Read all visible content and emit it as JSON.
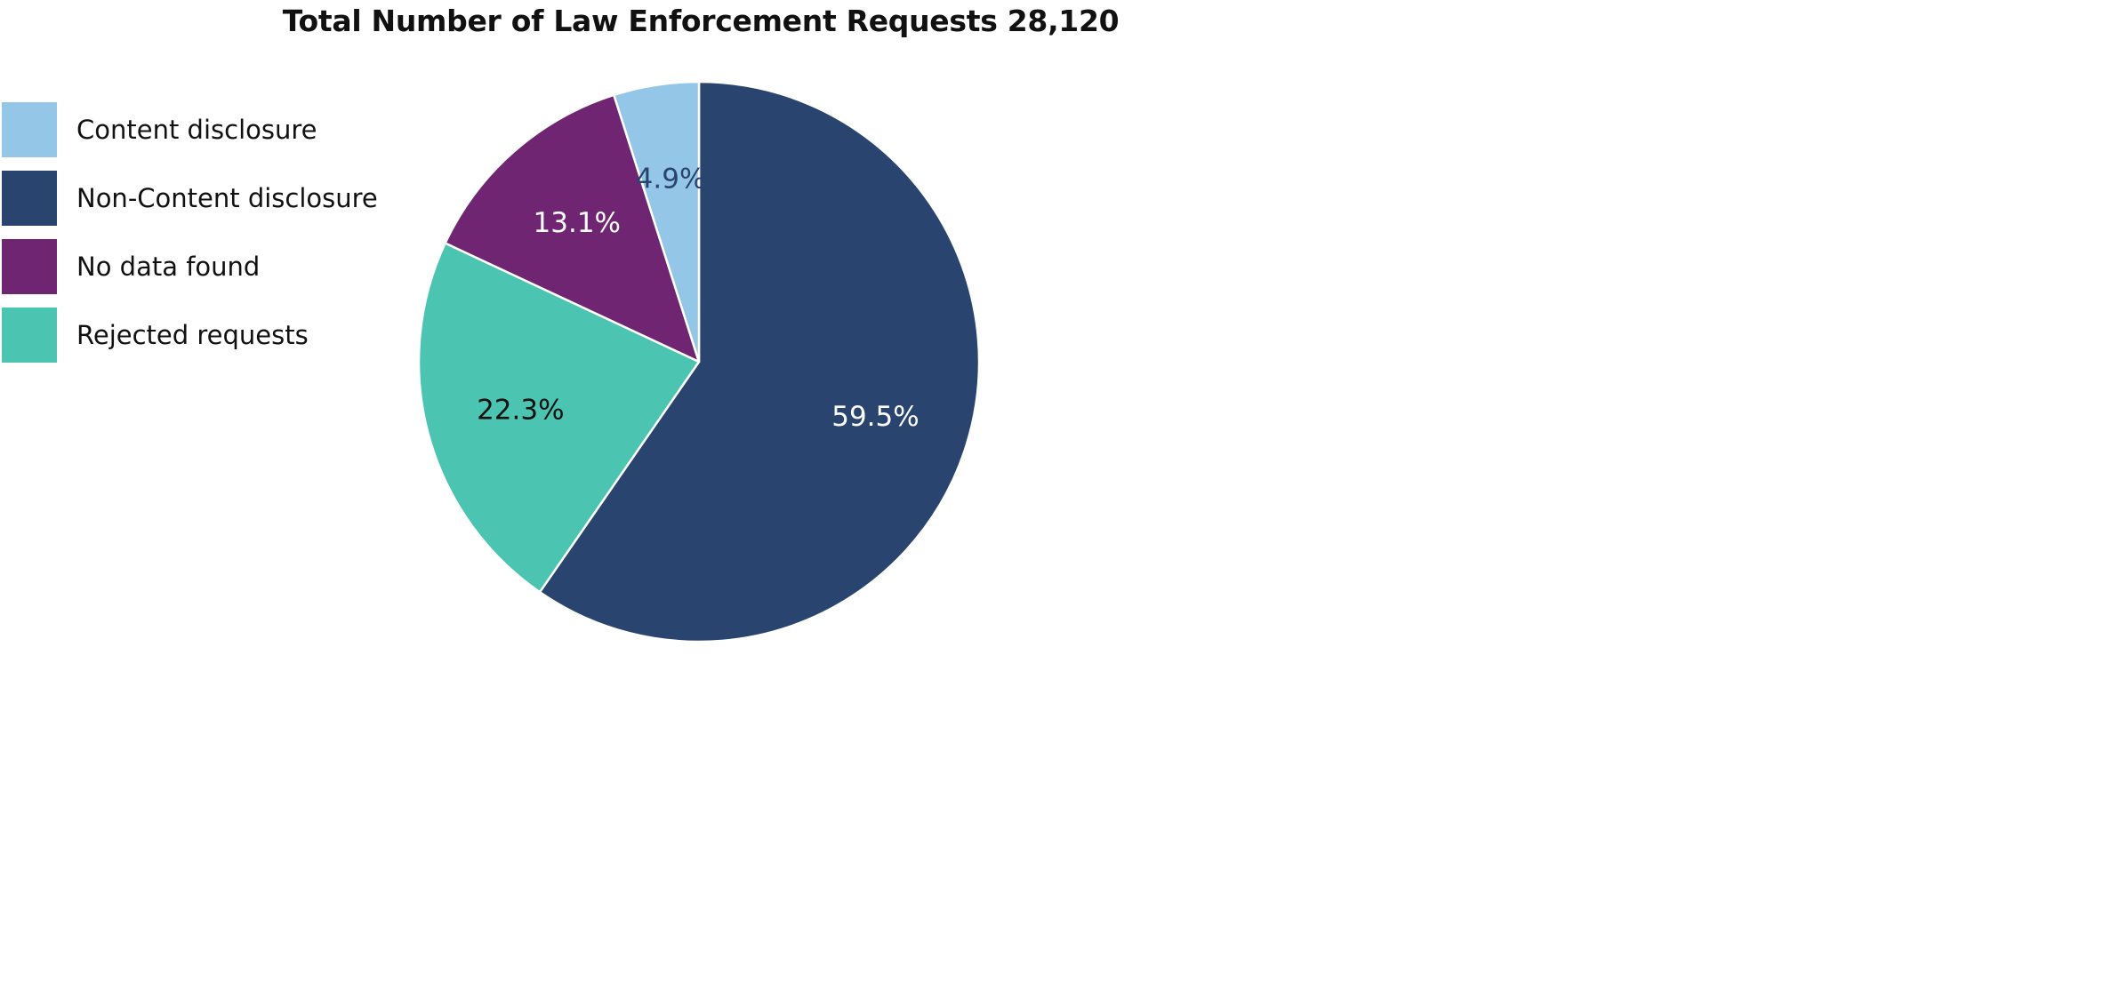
{
  "chart_data": {
    "type": "pie",
    "title": "Total Number of Law Enforcement Requests 28,120",
    "legend_position": "top-left",
    "start_angle": "12 o'clock",
    "direction": "clockwise",
    "slices": [
      {
        "name": "Non-Content disclosure",
        "value": 59.5,
        "label": "59.5%",
        "color": "#2a4470",
        "label_color": "#ffffff"
      },
      {
        "name": "Rejected requests",
        "value": 22.3,
        "label": "22.3%",
        "color": "#4bc4b1",
        "label_color": "#111111"
      },
      {
        "name": "No data found",
        "value": 13.1,
        "label": "13.1%",
        "color": "#6f2571",
        "label_color": "#ffffff"
      },
      {
        "name": "Content disclosure",
        "value": 4.9,
        "label": "4.9%",
        "color": "#94c6e8",
        "label_color": "#2a4470"
      }
    ],
    "legend": [
      {
        "label": "Content disclosure",
        "color": "#94c6e8"
      },
      {
        "label": "Non-Content disclosure",
        "color": "#2a4470"
      },
      {
        "label": "No data found",
        "color": "#6f2571"
      },
      {
        "label": "Rejected requests",
        "color": "#4bc4b1"
      }
    ]
  }
}
